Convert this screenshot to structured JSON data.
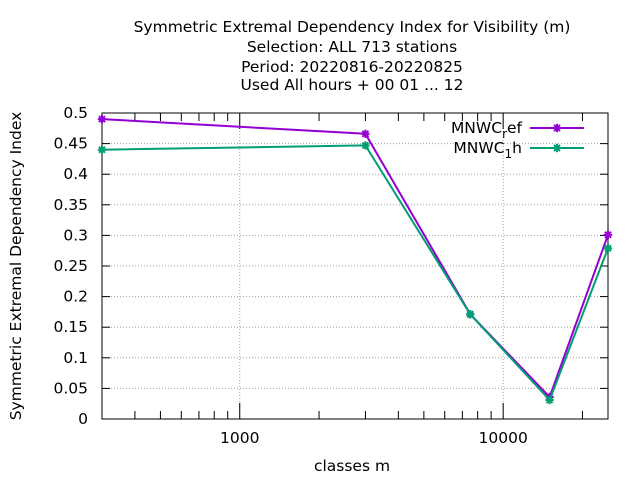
{
  "chart_data": {
    "type": "line",
    "title_lines": [
      "Symmetric Extremal Dependency Index  for Visibility (m)",
      "Selection: ALL     713 stations",
      "Period: 20220816-20220825",
      "Used  All hours + 00 01 ... 12"
    ],
    "xlabel": "classes m",
    "ylabel": "Symmetric Extremal Dependency Index",
    "x_scale": "log",
    "xlim": [
      300,
      25000
    ],
    "ylim": [
      0,
      0.5
    ],
    "x_ticks": [
      1000,
      10000
    ],
    "x_tick_labels": [
      "1000",
      "10000"
    ],
    "y_ticks": [
      0,
      0.05,
      0.1,
      0.15,
      0.2,
      0.25,
      0.3,
      0.35,
      0.4,
      0.45,
      0.5
    ],
    "y_tick_labels": [
      "0",
      "0.05",
      "0.1",
      "0.15",
      "0.2",
      "0.25",
      "0.3",
      "0.35",
      "0.4",
      "0.45",
      "0.5"
    ],
    "grid": true,
    "legend_position": "top-right",
    "series": [
      {
        "legend_main": "MNWC",
        "legend_sub": "r",
        "legend_rest": "ef",
        "color": "#9400d3",
        "marker": "star",
        "x": [
          300,
          3000,
          7500,
          15000,
          25000
        ],
        "values": [
          0.49,
          0.466,
          0.171,
          0.036,
          0.301
        ]
      },
      {
        "legend_main": "MNWC",
        "legend_sub": "1",
        "legend_rest": "h",
        "color": "#009e73",
        "marker": "star",
        "x": [
          300,
          3000,
          7500,
          15000,
          25000
        ],
        "values": [
          0.44,
          0.447,
          0.171,
          0.031,
          0.279
        ]
      }
    ]
  }
}
